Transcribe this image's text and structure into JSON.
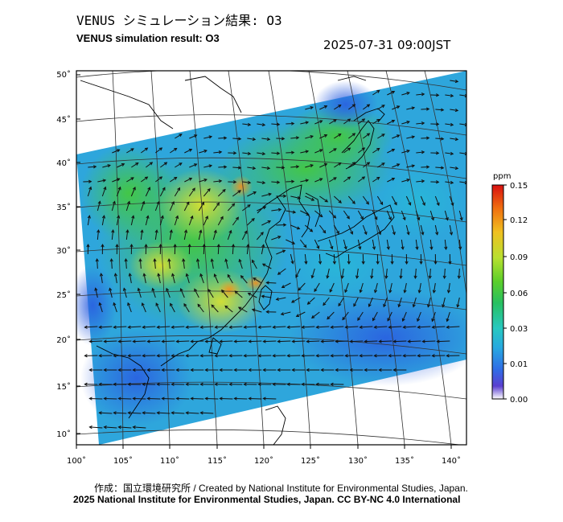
{
  "header": {
    "title_jp": "VENUS シミュレーション結果: O3",
    "title_en": "VENUS simulation result: O3",
    "timestamp": "2025-07-31 09:00JST"
  },
  "map": {
    "lat_ticks": [
      "50˚",
      "45˚",
      "40˚",
      "35˚",
      "30˚",
      "25˚",
      "20˚",
      "15˚",
      "10˚"
    ],
    "lon_ticks": [
      "100˚",
      "105˚",
      "110˚",
      "115˚",
      "120˚",
      "125˚",
      "130˚",
      "135˚",
      "140˚"
    ],
    "field": "O3"
  },
  "colorbar": {
    "unit": "ppm",
    "labels": [
      "0.15",
      "0.12",
      "0.09",
      "0.06",
      "0.03",
      "0.01",
      "0.00"
    ],
    "colors": [
      "#ffffff",
      "#5a3fd0",
      "#2f6ee6",
      "#27a9e0",
      "#27c8c0",
      "#28c060",
      "#5ccf2a",
      "#b8e030",
      "#f0c020",
      "#f07010",
      "#d81010"
    ]
  },
  "footer": {
    "credit": "作成：国立環境研究所 / Created by National Institute for Environmental Studies, Japan.",
    "copyright": "2025 National Institute for Environmental Studies, Japan. CC BY-NC 4.0 International"
  }
}
